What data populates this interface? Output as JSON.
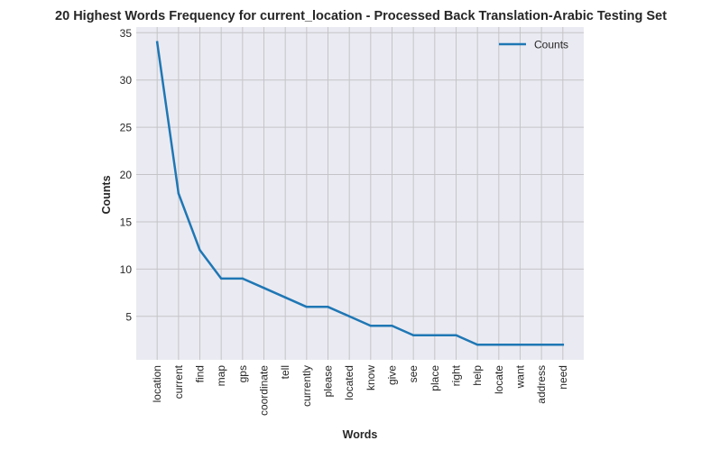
{
  "chart_data": {
    "type": "line",
    "title": "20 Highest Words Frequency for current_location - Processed Back Translation-Arabic Testing Set",
    "xlabel": "Words",
    "ylabel": "Counts",
    "categories": [
      "location",
      "current",
      "find",
      "map",
      "gps",
      "coordinate",
      "tell",
      "currently",
      "please",
      "located",
      "know",
      "give",
      "see",
      "place",
      "right",
      "help",
      "locate",
      "want",
      "address",
      "need"
    ],
    "series": [
      {
        "name": "Counts",
        "values": [
          34,
          18,
          12,
          9,
          9,
          8,
          7,
          6,
          6,
          5,
          4,
          4,
          3,
          3,
          3,
          2,
          2,
          2,
          2,
          2
        ]
      }
    ],
    "ylim": [
      0.4,
      35.6
    ],
    "yticks": [
      5,
      10,
      15,
      20,
      25,
      30,
      35
    ],
    "grid": true,
    "legend_position": "top-right",
    "colors": {
      "line": "#1f77b4",
      "plot_background": "#eaeaf2",
      "grid": "#c4c4c8",
      "text": "#262626"
    }
  }
}
